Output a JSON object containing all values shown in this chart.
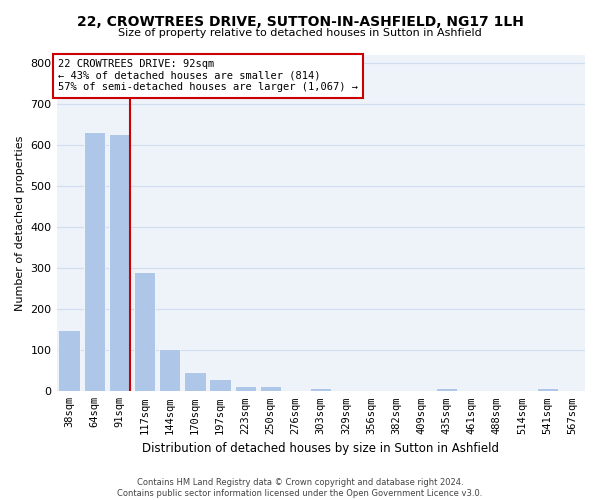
{
  "title_line1": "22, CROWTREES DRIVE, SUTTON-IN-ASHFIELD, NG17 1LH",
  "title_line2": "Size of property relative to detached houses in Sutton in Ashfield",
  "xlabel": "Distribution of detached houses by size in Sutton in Ashfield",
  "ylabel": "Number of detached properties",
  "footer_line1": "Contains HM Land Registry data © Crown copyright and database right 2024.",
  "footer_line2": "Contains public sector information licensed under the Open Government Licence v3.0.",
  "annotation_line1": "22 CROWTREES DRIVE: 92sqm",
  "annotation_line2": "← 43% of detached houses are smaller (814)",
  "annotation_line3": "57% of semi-detached houses are larger (1,067) →",
  "bar_color": "#aec6e8",
  "highlight_color": "#cc0000",
  "grid_color": "#d0dff0",
  "background_color": "#eef3fa",
  "categories": [
    "38sqm",
    "64sqm",
    "91sqm",
    "117sqm",
    "144sqm",
    "170sqm",
    "197sqm",
    "223sqm",
    "250sqm",
    "276sqm",
    "303sqm",
    "329sqm",
    "356sqm",
    "382sqm",
    "409sqm",
    "435sqm",
    "461sqm",
    "488sqm",
    "514sqm",
    "541sqm",
    "567sqm"
  ],
  "values": [
    150,
    632,
    628,
    290,
    104,
    48,
    30,
    12,
    12,
    0,
    8,
    0,
    0,
    0,
    0,
    8,
    0,
    0,
    0,
    8,
    0
  ],
  "highlight_bar_index": 2,
  "ylim": [
    0,
    820
  ],
  "yticks": [
    0,
    100,
    200,
    300,
    400,
    500,
    600,
    700,
    800
  ],
  "title_fontsize": 10,
  "subtitle_fontsize": 8,
  "ylabel_fontsize": 8,
  "xlabel_fontsize": 8.5,
  "tick_fontsize": 7.5,
  "footer_fontsize": 6,
  "annotation_fontsize": 7.5
}
